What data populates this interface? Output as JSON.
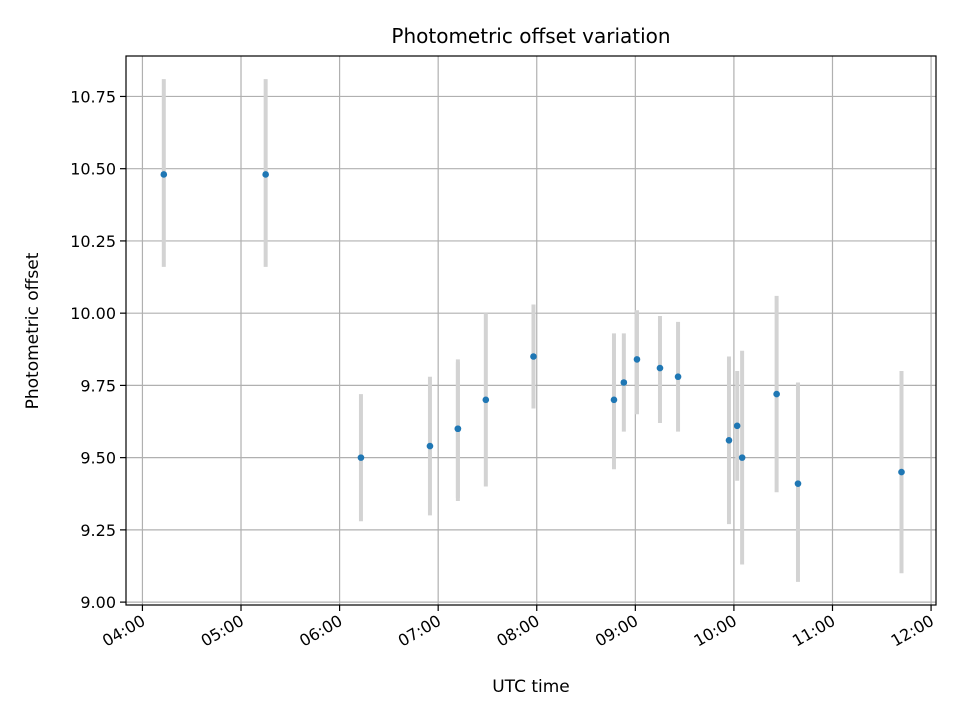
{
  "chart_data": {
    "type": "scatter",
    "title": "Photometric offset variation",
    "xlabel": "UTC time",
    "ylabel": "Photometric offset",
    "x_is_time": true,
    "xlim": [
      "03:50",
      "12:03"
    ],
    "ylim": [
      8.99,
      10.89
    ],
    "grid": true,
    "x_ticks": [
      "04:00",
      "05:00",
      "06:00",
      "07:00",
      "08:00",
      "09:00",
      "10:00",
      "11:00",
      "12:00"
    ],
    "y_ticks": [
      9.0,
      9.25,
      9.5,
      9.75,
      10.0,
      10.25,
      10.5,
      10.75
    ],
    "y_tick_labels": [
      "9.00",
      "9.25",
      "9.50",
      "9.75",
      "10.00",
      "10.25",
      "10.50",
      "10.75"
    ],
    "colors": {
      "point": "#1f77b4",
      "errorbar": "#d3d3d3",
      "grid": "#b0b0b0"
    },
    "points": [
      {
        "time": "04:13",
        "y": 10.48,
        "ylo": 10.16,
        "yhi": 10.81
      },
      {
        "time": "05:15",
        "y": 10.48,
        "ylo": 10.16,
        "yhi": 10.81
      },
      {
        "time": "06:13",
        "y": 9.5,
        "ylo": 9.28,
        "yhi": 9.72
      },
      {
        "time": "06:55",
        "y": 9.54,
        "ylo": 9.3,
        "yhi": 9.78
      },
      {
        "time": "07:12",
        "y": 9.6,
        "ylo": 9.35,
        "yhi": 9.84
      },
      {
        "time": "07:12",
        "y": 9.6,
        "ylo": 9.36,
        "yhi": 9.83
      },
      {
        "time": "07:29",
        "y": 9.7,
        "ylo": 9.4,
        "yhi": 10.0
      },
      {
        "time": "07:58",
        "y": 9.85,
        "ylo": 9.67,
        "yhi": 10.03
      },
      {
        "time": "08:47",
        "y": 9.7,
        "ylo": 9.46,
        "yhi": 9.93
      },
      {
        "time": "08:53",
        "y": 9.76,
        "ylo": 9.59,
        "yhi": 9.93
      },
      {
        "time": "09:01",
        "y": 9.84,
        "ylo": 9.65,
        "yhi": 10.01
      },
      {
        "time": "09:15",
        "y": 9.81,
        "ylo": 9.62,
        "yhi": 9.99
      },
      {
        "time": "09:26",
        "y": 9.78,
        "ylo": 9.59,
        "yhi": 9.97
      },
      {
        "time": "09:57",
        "y": 9.56,
        "ylo": 9.27,
        "yhi": 9.85
      },
      {
        "time": "10:02",
        "y": 9.61,
        "ylo": 9.42,
        "yhi": 9.8
      },
      {
        "time": "10:05",
        "y": 9.5,
        "ylo": 9.13,
        "yhi": 9.87
      },
      {
        "time": "10:26",
        "y": 9.72,
        "ylo": 9.38,
        "yhi": 10.06
      },
      {
        "time": "10:39",
        "y": 9.41,
        "ylo": 9.07,
        "yhi": 9.76
      },
      {
        "time": "11:42",
        "y": 9.45,
        "ylo": 9.1,
        "yhi": 9.8
      }
    ]
  }
}
